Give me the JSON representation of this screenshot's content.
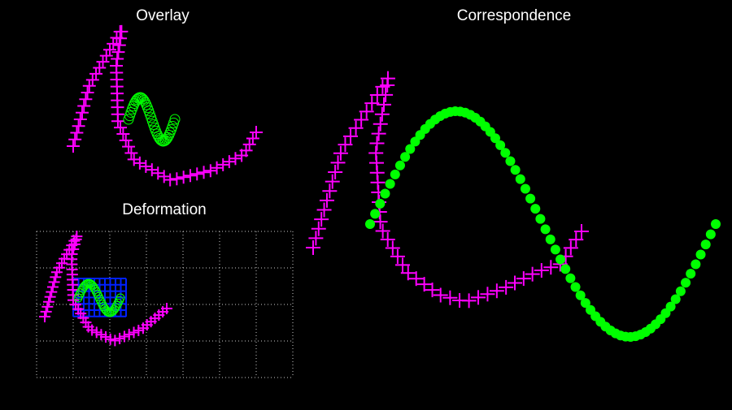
{
  "panels": [
    {
      "title": "Overlay"
    },
    {
      "title": "Deformation"
    },
    {
      "title": "Correspondence"
    }
  ]
}
